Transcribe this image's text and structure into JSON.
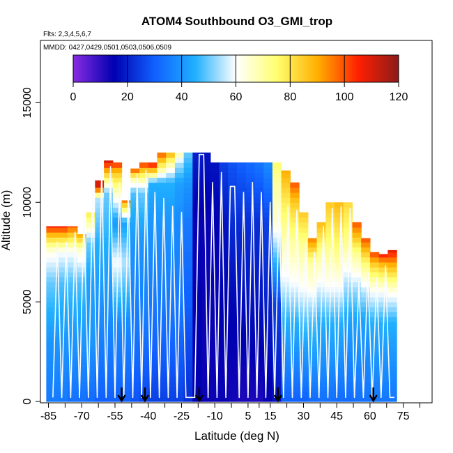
{
  "chart_data": {
    "type": "heatmap",
    "title": "ATOM4 Southbound O3_GMI_trop",
    "flights_label": "Flts: 2,3,4,5,6,7",
    "dates_label": "MMDD: 0427,0429,0501,0503,0506,0509",
    "xlabel": "Latitude (deg N)",
    "ylabel": "Altitude (m)",
    "xlim": [
      -88,
      88
    ],
    "ylim": [
      0,
      17500
    ],
    "x_ticks": [
      -85,
      -70,
      -55,
      -40,
      -25,
      -10,
      5,
      15,
      30,
      45,
      60,
      75
    ],
    "x_minor_ticks": [
      -77.5,
      -62.5,
      -47.5,
      -32.5,
      -17.5,
      -2.5,
      10,
      22.5,
      37.5,
      52.5,
      67.5,
      82.5
    ],
    "y_ticks": [
      0,
      5000,
      10000,
      15000
    ],
    "colorbar": {
      "min": 0,
      "max": 120,
      "ticks": [
        0,
        20,
        40,
        60,
        80,
        100,
        120
      ],
      "colors": [
        "#8a2be2",
        "#0000b0",
        "#1060ff",
        "#20b0ff",
        "#ffffff",
        "#ffff70",
        "#ffb000",
        "#ff2000",
        "#8b1a1a"
      ]
    },
    "curtain_columns": [
      {
        "lat": -84,
        "top": 8800,
        "profile": [
          [
            0,
            35
          ],
          [
            3000,
            40
          ],
          [
            6000,
            50
          ],
          [
            7500,
            62
          ],
          [
            8300,
            85
          ],
          [
            8800,
            105
          ]
        ]
      },
      {
        "lat": -79,
        "top": 8800,
        "profile": [
          [
            0,
            35
          ],
          [
            3000,
            40
          ],
          [
            6000,
            48
          ],
          [
            7500,
            60
          ],
          [
            8300,
            85
          ],
          [
            8800,
            105
          ]
        ]
      },
      {
        "lat": -74,
        "top": 8800,
        "profile": [
          [
            0,
            33
          ],
          [
            3000,
            40
          ],
          [
            6000,
            48
          ],
          [
            7500,
            60
          ],
          [
            8400,
            85
          ],
          [
            8800,
            100
          ]
        ]
      },
      {
        "lat": -70,
        "top": 8400,
        "profile": [
          [
            0,
            33
          ],
          [
            3000,
            40
          ],
          [
            6000,
            48
          ],
          [
            7600,
            65
          ],
          [
            8400,
            90
          ]
        ]
      },
      {
        "lat": -66,
        "top": 9500,
        "profile": [
          [
            0,
            32
          ],
          [
            3000,
            40
          ],
          [
            6000,
            42
          ],
          [
            8000,
            50
          ],
          [
            9500,
            80
          ]
        ]
      },
      {
        "lat": -62,
        "top": 11100,
        "profile": [
          [
            0,
            30
          ],
          [
            4000,
            38
          ],
          [
            8000,
            45
          ],
          [
            10200,
            55
          ],
          [
            10800,
            110
          ],
          [
            11100,
            110
          ]
        ]
      },
      {
        "lat": -58,
        "top": 12100,
        "profile": [
          [
            0,
            30
          ],
          [
            4000,
            38
          ],
          [
            8000,
            45
          ],
          [
            10500,
            50
          ],
          [
            11600,
            90
          ],
          [
            12100,
            110
          ]
        ]
      },
      {
        "lat": -54,
        "top": 12000,
        "profile": [
          [
            0,
            30
          ],
          [
            4000,
            38
          ],
          [
            7000,
            60
          ],
          [
            9000,
            40
          ],
          [
            11500,
            85
          ],
          [
            12000,
            105
          ]
        ]
      },
      {
        "lat": -50,
        "top": 10100,
        "profile": [
          [
            0,
            30
          ],
          [
            4000,
            38
          ],
          [
            7000,
            55
          ],
          [
            9000,
            42
          ],
          [
            10100,
            95
          ]
        ]
      },
      {
        "lat": -46,
        "top": 11700,
        "profile": [
          [
            0,
            28
          ],
          [
            4000,
            35
          ],
          [
            8000,
            40
          ],
          [
            10500,
            48
          ],
          [
            11200,
            70
          ],
          [
            11700,
            100
          ]
        ]
      },
      {
        "lat": -42,
        "top": 12000,
        "profile": [
          [
            0,
            26
          ],
          [
            4000,
            35
          ],
          [
            8000,
            40
          ],
          [
            10500,
            50
          ],
          [
            11500,
            80
          ],
          [
            12000,
            105
          ]
        ]
      },
      {
        "lat": -38,
        "top": 12000,
        "profile": [
          [
            0,
            25
          ],
          [
            5000,
            35
          ],
          [
            9000,
            40
          ],
          [
            11000,
            45
          ],
          [
            11600,
            85
          ],
          [
            12000,
            110
          ]
        ]
      },
      {
        "lat": -34,
        "top": 12500,
        "profile": [
          [
            0,
            25
          ],
          [
            5000,
            35
          ],
          [
            9000,
            40
          ],
          [
            11000,
            45
          ],
          [
            11800,
            75
          ],
          [
            12500,
            100
          ]
        ]
      },
      {
        "lat": -30,
        "top": 12500,
        "profile": [
          [
            0,
            25
          ],
          [
            5000,
            35
          ],
          [
            9000,
            40
          ],
          [
            11000,
            45
          ],
          [
            11800,
            65
          ],
          [
            12500,
            90
          ]
        ]
      },
      {
        "lat": -26,
        "top": 12500,
        "profile": [
          [
            0,
            25
          ],
          [
            5000,
            35
          ],
          [
            9000,
            38
          ],
          [
            11000,
            42
          ],
          [
            12000,
            55
          ],
          [
            12500,
            70
          ]
        ]
      },
      {
        "lat": -22,
        "top": 12500,
        "profile": [
          [
            0,
            22
          ],
          [
            5000,
            30
          ],
          [
            9000,
            35
          ],
          [
            11000,
            40
          ],
          [
            12500,
            50
          ]
        ]
      },
      {
        "lat": -18,
        "top": 12500,
        "profile": [
          [
            0,
            15
          ],
          [
            5000,
            15
          ],
          [
            9000,
            14
          ],
          [
            12500,
            20
          ]
        ]
      },
      {
        "lat": -14,
        "top": 12500,
        "profile": [
          [
            0,
            14
          ],
          [
            5000,
            14
          ],
          [
            9000,
            14
          ],
          [
            12500,
            18
          ]
        ]
      },
      {
        "lat": -10,
        "top": 12000,
        "profile": [
          [
            0,
            14
          ],
          [
            5000,
            14
          ],
          [
            9000,
            15
          ],
          [
            12000,
            18
          ]
        ]
      },
      {
        "lat": -6,
        "top": 12000,
        "profile": [
          [
            0,
            14
          ],
          [
            5000,
            15
          ],
          [
            9000,
            18
          ],
          [
            12000,
            25
          ]
        ]
      },
      {
        "lat": -2,
        "top": 12000,
        "profile": [
          [
            0,
            13
          ],
          [
            5000,
            16
          ],
          [
            9000,
            22
          ],
          [
            12000,
            28
          ]
        ]
      },
      {
        "lat": 2,
        "top": 12000,
        "profile": [
          [
            0,
            12
          ],
          [
            5000,
            17
          ],
          [
            9000,
            22
          ],
          [
            12000,
            30
          ]
        ]
      },
      {
        "lat": 6,
        "top": 12000,
        "profile": [
          [
            0,
            12
          ],
          [
            5000,
            18
          ],
          [
            9000,
            22
          ],
          [
            12000,
            32
          ]
        ]
      },
      {
        "lat": 10,
        "top": 12000,
        "profile": [
          [
            0,
            12
          ],
          [
            5000,
            18
          ],
          [
            9000,
            22
          ],
          [
            12000,
            34
          ]
        ]
      },
      {
        "lat": 14,
        "top": 12000,
        "profile": [
          [
            0,
            14
          ],
          [
            5000,
            20
          ],
          [
            9000,
            25
          ],
          [
            12000,
            38
          ]
        ]
      },
      {
        "lat": 18,
        "top": 12000,
        "profile": [
          [
            0,
            18
          ],
          [
            5000,
            25
          ],
          [
            7000,
            45
          ],
          [
            9000,
            65
          ],
          [
            11000,
            70
          ],
          [
            12000,
            75
          ]
        ]
      },
      {
        "lat": 22,
        "top": 11600,
        "profile": [
          [
            0,
            30
          ],
          [
            4000,
            45
          ],
          [
            6000,
            58
          ],
          [
            8000,
            68
          ],
          [
            10000,
            78
          ],
          [
            11600,
            90
          ]
        ]
      },
      {
        "lat": 26,
        "top": 11000,
        "profile": [
          [
            0,
            30
          ],
          [
            4000,
            45
          ],
          [
            6000,
            60
          ],
          [
            8000,
            70
          ],
          [
            10000,
            85
          ],
          [
            11000,
            100
          ]
        ]
      },
      {
        "lat": 30,
        "top": 9500,
        "profile": [
          [
            0,
            30
          ],
          [
            4000,
            48
          ],
          [
            6000,
            62
          ],
          [
            8000,
            72
          ],
          [
            9500,
            85
          ]
        ]
      },
      {
        "lat": 34,
        "top": 8200,
        "profile": [
          [
            0,
            32
          ],
          [
            4000,
            48
          ],
          [
            6000,
            64
          ],
          [
            7000,
            70
          ],
          [
            8200,
            95
          ]
        ]
      },
      {
        "lat": 38,
        "top": 9000,
        "profile": [
          [
            0,
            33
          ],
          [
            4000,
            45
          ],
          [
            6000,
            60
          ],
          [
            7500,
            72
          ],
          [
            9000,
            88
          ]
        ]
      },
      {
        "lat": 42,
        "top": 10000,
        "profile": [
          [
            0,
            33
          ],
          [
            4000,
            45
          ],
          [
            6000,
            62
          ],
          [
            8000,
            74
          ],
          [
            10000,
            85
          ]
        ]
      },
      {
        "lat": 46,
        "top": 10000,
        "profile": [
          [
            0,
            32
          ],
          [
            4000,
            45
          ],
          [
            6000,
            62
          ],
          [
            8000,
            76
          ],
          [
            10000,
            88
          ]
        ]
      },
      {
        "lat": 50,
        "top": 10000,
        "profile": [
          [
            0,
            32
          ],
          [
            4000,
            42
          ],
          [
            6000,
            55
          ],
          [
            8000,
            72
          ],
          [
            10000,
            82
          ]
        ]
      },
      {
        "lat": 54,
        "top": 9000,
        "profile": [
          [
            0,
            33
          ],
          [
            4000,
            42
          ],
          [
            5500,
            52
          ],
          [
            7500,
            72
          ],
          [
            9000,
            100
          ]
        ]
      },
      {
        "lat": 58,
        "top": 8200,
        "profile": [
          [
            0,
            33
          ],
          [
            4000,
            42
          ],
          [
            5500,
            55
          ],
          [
            7000,
            75
          ],
          [
            8200,
            100
          ]
        ]
      },
      {
        "lat": 62,
        "top": 7500,
        "profile": [
          [
            0,
            34
          ],
          [
            4000,
            45
          ],
          [
            5500,
            60
          ],
          [
            6800,
            82
          ],
          [
            7500,
            102
          ]
        ]
      },
      {
        "lat": 66,
        "top": 7400,
        "profile": [
          [
            0,
            34
          ],
          [
            4000,
            45
          ],
          [
            5500,
            60
          ],
          [
            6800,
            85
          ],
          [
            7400,
            105
          ]
        ]
      },
      {
        "lat": 70,
        "top": 7600,
        "profile": [
          [
            0,
            34
          ],
          [
            4000,
            45
          ],
          [
            5500,
            62
          ],
          [
            6800,
            88
          ],
          [
            7600,
            108
          ]
        ]
      }
    ],
    "flight_track": [
      [
        -83,
        200
      ],
      [
        -81,
        8000
      ],
      [
        -79,
        200
      ],
      [
        -77,
        8000
      ],
      [
        -75,
        200
      ],
      [
        -73,
        8500
      ],
      [
        -71,
        200
      ],
      [
        -69,
        9500
      ],
      [
        -67,
        200
      ],
      [
        -65,
        10800
      ],
      [
        -63,
        200
      ],
      [
        -61,
        11700
      ],
      [
        -59,
        200
      ],
      [
        -57,
        11800
      ],
      [
        -55,
        200
      ],
      [
        -53,
        11000
      ],
      [
        -51,
        200
      ],
      [
        -49,
        10500
      ],
      [
        -47,
        200
      ],
      [
        -45,
        11400
      ],
      [
        -43,
        200
      ],
      [
        -41,
        11600
      ],
      [
        -39,
        200
      ],
      [
        -37,
        10500
      ],
      [
        -35,
        200
      ],
      [
        -33,
        10200
      ],
      [
        -31,
        200
      ],
      [
        -29,
        9800
      ],
      [
        -27,
        200
      ],
      [
        -25,
        9500
      ],
      [
        -23,
        200
      ],
      [
        -21,
        200
      ],
      [
        -19,
        200
      ],
      [
        -17,
        12400
      ],
      [
        -15,
        12400
      ],
      [
        -13,
        200
      ],
      [
        -11,
        11000
      ],
      [
        -9,
        200
      ],
      [
        -7,
        11500
      ],
      [
        -5,
        200
      ],
      [
        -3,
        10800
      ],
      [
        -1,
        10800
      ],
      [
        1,
        200
      ],
      [
        3,
        10500
      ],
      [
        5,
        200
      ],
      [
        7,
        11000
      ],
      [
        9,
        200
      ],
      [
        11,
        10500
      ],
      [
        13,
        200
      ],
      [
        15,
        10000
      ],
      [
        17,
        200
      ],
      [
        19,
        10000
      ],
      [
        21,
        200
      ],
      [
        23,
        9800
      ],
      [
        25,
        200
      ],
      [
        27,
        9600
      ],
      [
        29,
        200
      ],
      [
        31,
        8000
      ],
      [
        33,
        200
      ],
      [
        35,
        7500
      ],
      [
        37,
        200
      ],
      [
        39,
        8800
      ],
      [
        41,
        200
      ],
      [
        43,
        9700
      ],
      [
        45,
        200
      ],
      [
        47,
        9800
      ],
      [
        49,
        200
      ],
      [
        51,
        9700
      ],
      [
        53,
        200
      ],
      [
        55,
        6000
      ],
      [
        57,
        200
      ],
      [
        59,
        6500
      ],
      [
        61,
        200
      ],
      [
        63,
        6200
      ],
      [
        65,
        200
      ],
      [
        67,
        6800
      ],
      [
        69,
        200
      ],
      [
        71,
        200
      ]
    ],
    "arrows_lat": [
      -52,
      -41.5,
      -17,
      18.5,
      61.5
    ]
  }
}
